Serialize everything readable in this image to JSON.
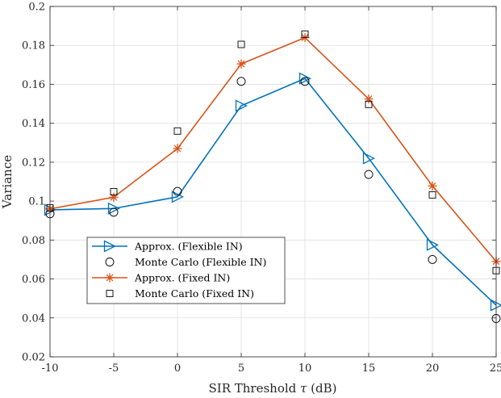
{
  "chart_data": {
    "type": "line",
    "xlabel_text": "SIR Threshold",
    "xlabel_symbol": "τ",
    "xlabel_unit": "(dB)",
    "ylabel": "Variance",
    "xlim": [
      -10,
      25
    ],
    "ylim": [
      0.02,
      0.2
    ],
    "grid": true,
    "x": [
      -10,
      -5,
      0,
      5,
      10,
      15,
      20,
      25
    ],
    "xticks": [
      "-10",
      "-5",
      "0",
      "5",
      "10",
      "15",
      "20",
      "25"
    ],
    "yticks": [
      "0.02",
      "0.04",
      "0.06",
      "0.08",
      "0.1",
      "0.12",
      "0.14",
      "0.16",
      "0.18",
      "0.2"
    ],
    "legend_position": "bottom-left",
    "series": [
      {
        "name": "Approx. (Flexible IN)",
        "style": "line-triangle",
        "color": "#0072BD",
        "values": [
          0.0955,
          0.0962,
          0.1022,
          0.149,
          0.163,
          0.122,
          0.0775,
          0.0465
        ]
      },
      {
        "name": "Monte Carlo (Flexible IN)",
        "style": "circle",
        "color": "#000000",
        "values": [
          0.0935,
          0.0943,
          0.105,
          0.1615,
          0.1615,
          0.1137,
          0.07,
          0.0397
        ]
      },
      {
        "name": "Approx. (Fixed IN)",
        "style": "line-star",
        "color": "#D95319",
        "values": [
          0.096,
          0.102,
          0.127,
          0.1705,
          0.184,
          0.1525,
          0.1078,
          0.069
        ]
      },
      {
        "name": "Monte Carlo (Fixed IN)",
        "style": "square",
        "color": "#000000",
        "values": [
          0.0965,
          0.1048,
          0.136,
          0.1805,
          0.1858,
          0.1497,
          0.1032,
          0.0643
        ]
      }
    ]
  }
}
